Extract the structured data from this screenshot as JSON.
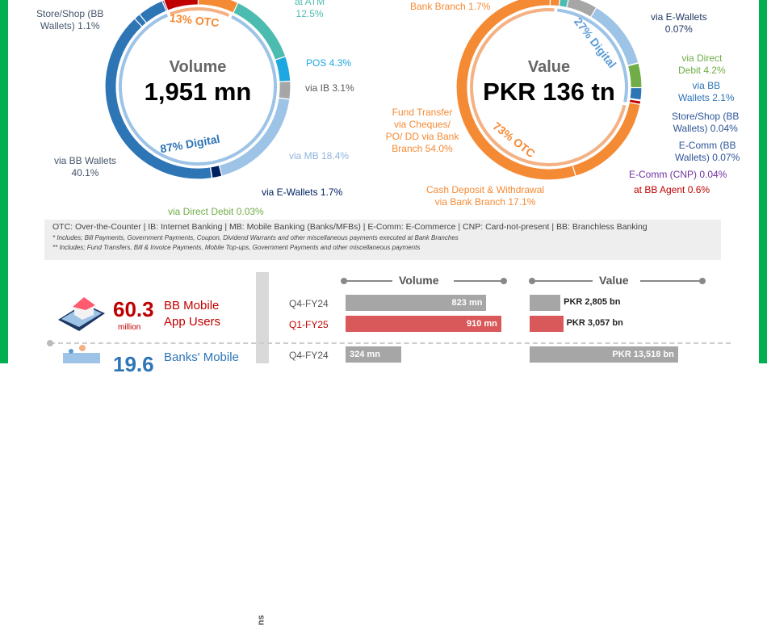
{
  "chart_data": [
    {
      "type": "pie",
      "variant": "donut",
      "title": "Volume",
      "total": "1,951 mn",
      "inner_ring": [
        {
          "label": "13% OTC",
          "value": 13,
          "color": "#f4b183"
        },
        {
          "label": "87% Digital",
          "value": 87,
          "color": "#9dc3e6"
        }
      ],
      "segments": [
        {
          "label": "",
          "value": 4.5,
          "color": "#2e75b6"
        },
        {
          "label": "",
          "value": 0.3,
          "color": "#7030a0"
        },
        {
          "label": "",
          "value": 6,
          "color": "#c00000"
        },
        {
          "label": "",
          "value": 7,
          "color": "#f58a34"
        },
        {
          "label": "at ATM 12.5%",
          "value": 12.5,
          "color": "#4dbcb0"
        },
        {
          "label": "POS 4.3%",
          "value": 4.3,
          "color": "#1ea7e1"
        },
        {
          "label": "via IB 3.1%",
          "value": 3.1,
          "color": "#a6a6a6"
        },
        {
          "label": "via MB 18.4%",
          "value": 18.4,
          "color": "#9dc3e6"
        },
        {
          "label": "via E-Wallets 1.7%",
          "value": 1.7,
          "color": "#002060"
        },
        {
          "label": "via Direct Debit 0.03%",
          "value": 0.03,
          "color": "#70ad47"
        },
        {
          "label": "via BB Wallets 40.1%",
          "value": 40.1,
          "color": "#2e75b6"
        },
        {
          "label": "Store/Shop (BB Wallets) 1.1%",
          "value": 1.1,
          "color": "#2e75b6"
        }
      ]
    },
    {
      "type": "pie",
      "variant": "donut",
      "title": "Value",
      "total": "PKR 136 tn",
      "inner_ring": [
        {
          "label": "27% Digital",
          "value": 27,
          "color": "#9dc3e6"
        },
        {
          "label": "73% OTC",
          "value": 73,
          "color": "#f4b183"
        }
      ],
      "segments": [
        {
          "label": "",
          "value": 1.5,
          "color": "#4dbcb0"
        },
        {
          "label": "",
          "value": 5,
          "color": "#a6a6a6"
        },
        {
          "label": "",
          "value": 12,
          "color": "#9dc3e6"
        },
        {
          "label": "via E-Wallets 0.07%",
          "value": 0.07,
          "color": "#002060"
        },
        {
          "label": "via Direct Debit 4.2%",
          "value": 4.2,
          "color": "#70ad47"
        },
        {
          "label": "via BB Wallets 2.1%",
          "value": 2.1,
          "color": "#2e75b6"
        },
        {
          "label": "Store/Shop (BB Wallets) 0.04%",
          "value": 0.04,
          "color": "#2e75b6"
        },
        {
          "label": "E-Comm (BB Wallets) 0.07%",
          "value": 0.07,
          "color": "#2e75b6"
        },
        {
          "label": "E-Comm (CNP) 0.04%",
          "value": 0.04,
          "color": "#7030a0"
        },
        {
          "label": "at BB Agent 0.6%",
          "value": 0.6,
          "color": "#c00000"
        },
        {
          "label": "Cash Deposit & Withdrawal via Bank Branch 17.1%",
          "value": 17.1,
          "color": "#f58a34"
        },
        {
          "label": "Fund Transfer via Cheques/ PO/ DD via Bank Branch 54.0%",
          "value": 54.0,
          "color": "#f58a34"
        },
        {
          "label": "Bank Branch 1.7%",
          "value": 1.7,
          "color": "#f58a34"
        }
      ]
    },
    {
      "type": "bar",
      "orientation": "horizontal",
      "title": "Volume",
      "categories": [
        "Q4-FY24",
        "Q1-FY25",
        "Q4-FY24"
      ],
      "groups": [
        "BB Mobile App Users",
        "BB Mobile App Users",
        "Banks' Mobile"
      ],
      "values": [
        823,
        910,
        324
      ],
      "unit": "mn",
      "labels": [
        "823 mn",
        "910 mn",
        "324 mn"
      ]
    },
    {
      "type": "bar",
      "orientation": "horizontal",
      "title": "Value",
      "categories": [
        "Q4-FY24",
        "Q1-FY25",
        "Q4-FY24"
      ],
      "values": [
        2805,
        3057,
        13518
      ],
      "unit": "PKR bn",
      "labels": [
        "PKR 2,805 bn",
        "PKR 3,057 bn",
        "PKR 13,518 bn"
      ]
    }
  ],
  "volume_labels": {
    "store": [
      "Store/Shop (BB",
      "Wallets) 1.1%"
    ],
    "atm": [
      "at ATM",
      "12.5%"
    ],
    "pos": "POS 4.3%",
    "ib": "via IB 3.1%",
    "mb": "via MB 18.4%",
    "ewallet": "via E-Wallets 1.7%",
    "dd": "via Direct Debit 0.03%",
    "bb": [
      "via BB Wallets",
      "40.1%"
    ],
    "title": "Volume",
    "total": "1,951 mn",
    "otc": "13% OTC",
    "digital": "87% Digital"
  },
  "value_labels": {
    "branch": "Bank Branch 1.7%",
    "ewallet": [
      "via E-Wallets",
      "0.07%"
    ],
    "dd": [
      "via Direct",
      "Debit 4.2%"
    ],
    "bb": [
      "via BB",
      "Wallets 2.1%"
    ],
    "store": [
      "Store/Shop (BB",
      "Wallets) 0.04%"
    ],
    "ecomm": [
      "E-Comm (BB",
      "Wallets) 0.07%"
    ],
    "cnp": "E-Comm (CNP) 0.04%",
    "agent": "at BB Agent 0.6%",
    "fund": [
      "Fund Transfer",
      "via Cheques/",
      "PO/ DD via Bank",
      "Branch 54.0%"
    ],
    "cash": [
      "Cash Deposit & Withdrawal",
      "via Bank Branch 17.1%"
    ],
    "title": "Value",
    "total": "PKR 136 tn",
    "otc": "73% OTC",
    "digital": "27% Digital"
  },
  "legend": {
    "line1": "OTC: Over-the-Counter | IB: Internet Banking | MB: Mobile Banking (Banks/MFBs) | E-Comm: E-Commerce | CNP: Card-not-present | BB: Branchless Banking",
    "line2": "* Includes; Bill Payments, Government Payments, Coupon, Dividend Warrants and other miscellaneous payments executed at Bank Branches",
    "line3": "** Includes; Fund Transfers, Bill & Invoice Payments, Mobile Top-ups, Government Payments and other miscellaneous payments"
  },
  "bottom": {
    "volume_header": "Volume",
    "value_header": "Value",
    "side_label": "ns",
    "bb": {
      "number": "60.3",
      "unit": "million",
      "label": [
        "BB Mobile",
        "App Users"
      ]
    },
    "banks": {
      "number": "19.6",
      "label": "Banks' Mobile"
    },
    "rows": [
      {
        "q": "Q4-FY24"
      },
      {
        "q": "Q1-FY25"
      },
      {
        "q": "Q4-FY24"
      }
    ]
  },
  "colors": {
    "border": "#00b050",
    "accent_red": "#c00000",
    "bar_gray": "#a6a6a6",
    "bar_red": "#d9595a",
    "blue": "#2e75b6"
  }
}
